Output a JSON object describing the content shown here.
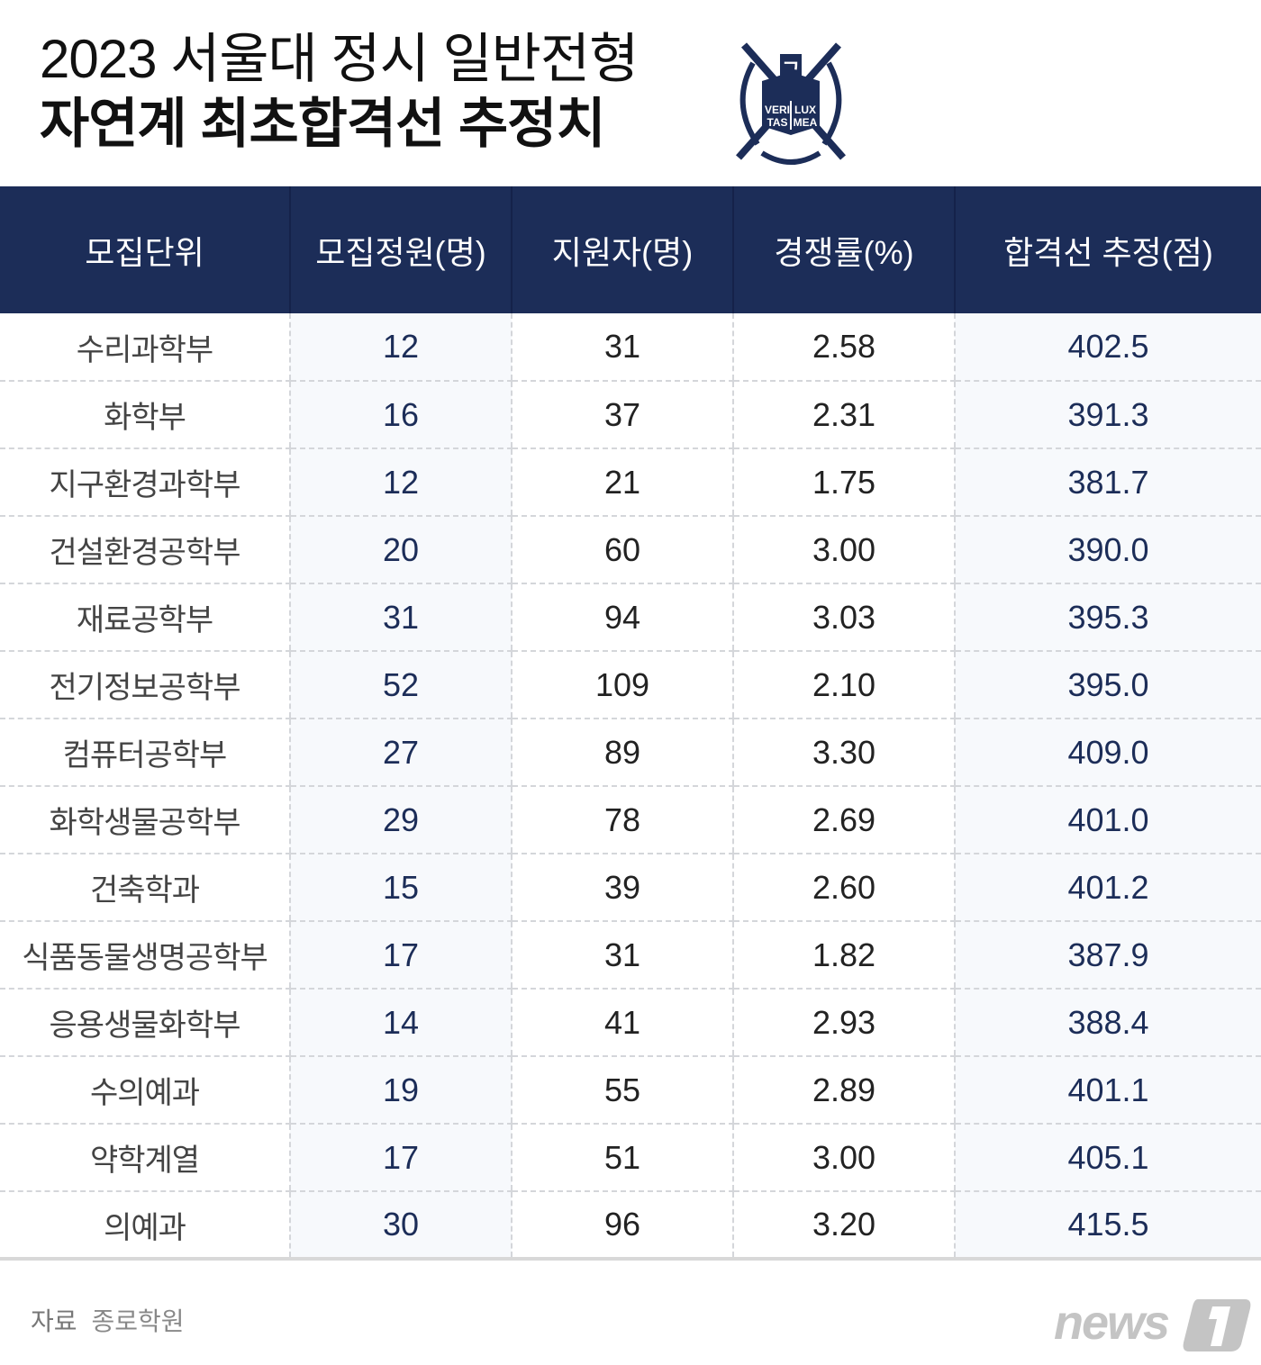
{
  "title": {
    "line1": "2023 서울대 정시 일반전형",
    "line2": "자연계 최초합격선 추정치"
  },
  "logo": {
    "text": [
      "VERI",
      "TAS",
      "LUX",
      "MEA"
    ],
    "color": "#1c2d58"
  },
  "table": {
    "headers": [
      "모집단위",
      "모집정원(명)",
      "지원자(명)",
      "경쟁률(%)",
      "합격선 추정(점)"
    ],
    "rows": [
      [
        "수리과학부",
        "12",
        "31",
        "2.58",
        "402.5"
      ],
      [
        "화학부",
        "16",
        "37",
        "2.31",
        "391.3"
      ],
      [
        "지구환경과학부",
        "12",
        "21",
        "1.75",
        "381.7"
      ],
      [
        "건설환경공학부",
        "20",
        "60",
        "3.00",
        "390.0"
      ],
      [
        "재료공학부",
        "31",
        "94",
        "3.03",
        "395.3"
      ],
      [
        "전기정보공학부",
        "52",
        "109",
        "2.10",
        "395.0"
      ],
      [
        "컴퓨터공학부",
        "27",
        "89",
        "3.30",
        "409.0"
      ],
      [
        "화학생물공학부",
        "29",
        "78",
        "2.69",
        "401.0"
      ],
      [
        "건축학과",
        "15",
        "39",
        "2.60",
        "401.2"
      ],
      [
        "식품동물생명공학부",
        "17",
        "31",
        "1.82",
        "387.9"
      ],
      [
        "응용생물화학부",
        "14",
        "41",
        "2.93",
        "388.4"
      ],
      [
        "수의예과",
        "19",
        "55",
        "2.89",
        "401.1"
      ],
      [
        "약학계열",
        "17",
        "51",
        "3.00",
        "405.1"
      ],
      [
        "의예과",
        "30",
        "96",
        "3.20",
        "415.5"
      ]
    ]
  },
  "source": {
    "label": "자료",
    "value": "종로학원"
  },
  "watermark": "news1",
  "colors": {
    "header_bg": "#1c2d58",
    "accent_col_bg": "#f7f9fc"
  }
}
